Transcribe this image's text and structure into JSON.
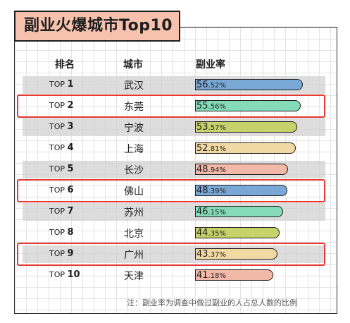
{
  "title": "副业火爆城市Top10",
  "headers": {
    "rank": "排名",
    "city": "城市",
    "rate": "副业率"
  },
  "chart_data": {
    "type": "bar",
    "orientation": "horizontal",
    "title": "副业火爆城市Top10",
    "rank_prefix": "TOP",
    "percent_sign": "%",
    "categories": [
      "武汉",
      "东莞",
      "宁波",
      "上海",
      "长沙",
      "佛山",
      "苏州",
      "北京",
      "广州",
      "天津"
    ],
    "ranks": [
      1,
      2,
      3,
      4,
      5,
      6,
      7,
      8,
      9,
      10
    ],
    "values": [
      56.52,
      55.56,
      53.57,
      52.81,
      48.94,
      48.39,
      46.15,
      44.35,
      43.37,
      41.18
    ],
    "unit": "%",
    "colors": [
      "#7aa8d6",
      "#85dbb8",
      "#c5d36a",
      "#f2d9a3",
      "#f2b8a8"
    ],
    "highlighted_ranks": [
      2,
      6,
      9
    ],
    "highlight_color": "#e53935"
  },
  "note": "注：副业率为调查中做过副业的人占总人数的比例"
}
